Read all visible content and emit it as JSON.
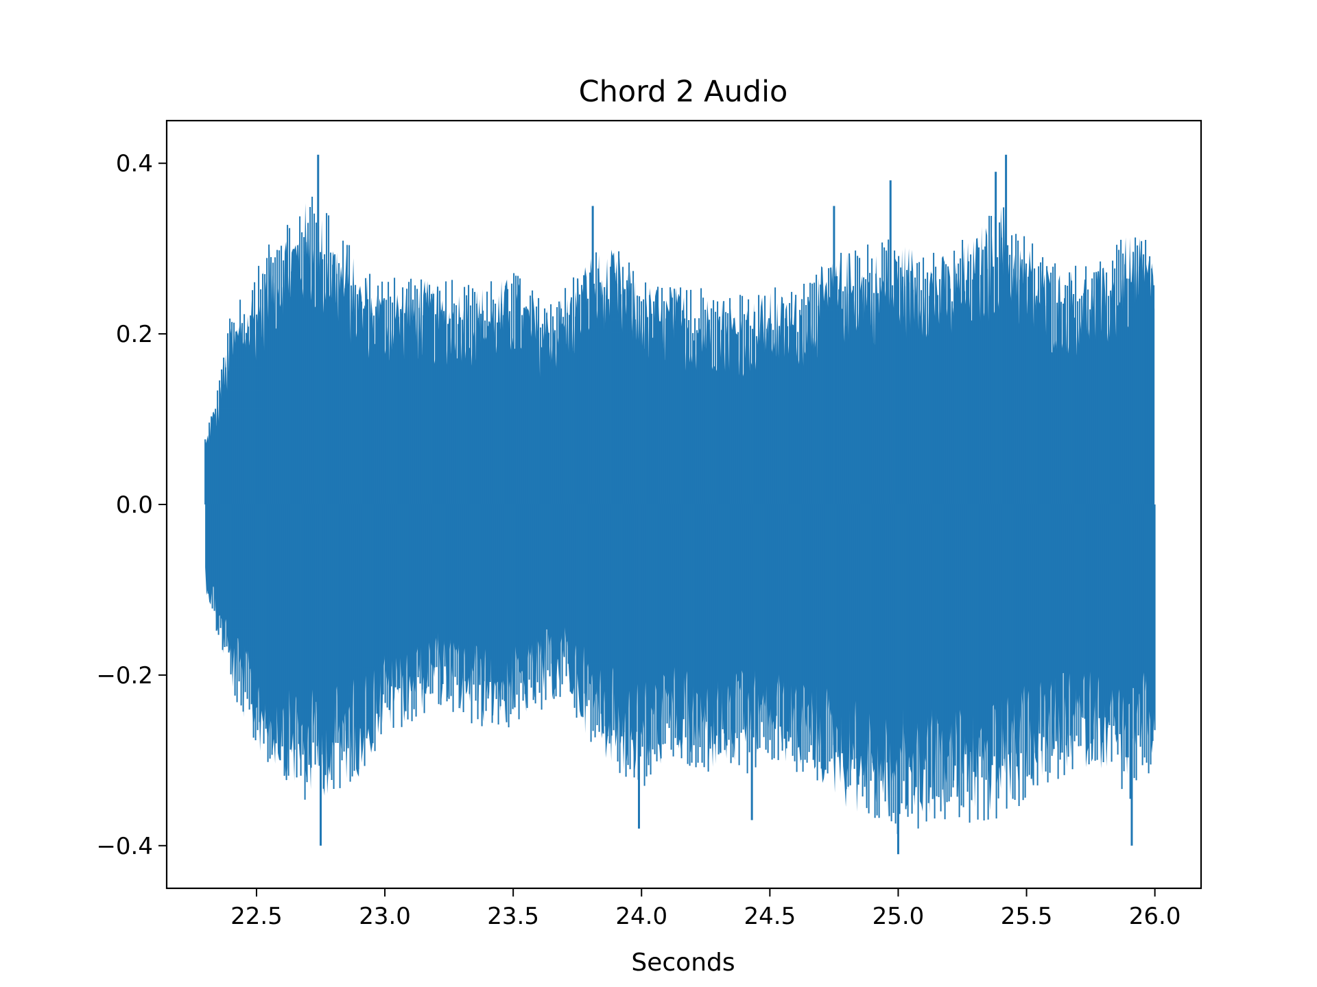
{
  "chart_data": {
    "type": "line",
    "title": "Chord 2 Audio",
    "xlabel": "Seconds",
    "ylabel": "",
    "xlim": [
      22.15,
      26.18
    ],
    "ylim": [
      -0.45,
      0.45
    ],
    "x_ticks": [
      22.5,
      23.0,
      23.5,
      24.0,
      24.5,
      25.0,
      25.5,
      26.0
    ],
    "x_tick_labels": [
      "22.5",
      "23.0",
      "23.5",
      "24.0",
      "24.5",
      "25.0",
      "25.5",
      "26.0"
    ],
    "y_ticks": [
      -0.4,
      -0.2,
      0.0,
      0.2,
      0.4
    ],
    "y_tick_labels": [
      "−0.4",
      "−0.2",
      "0.0",
      "0.2",
      "0.4"
    ],
    "grid": false,
    "legend": "none",
    "series": [
      {
        "color": "#1f77b4",
        "x_start": 22.3,
        "x_end": 26.0,
        "envelope_times": [
          22.3,
          22.35,
          22.4,
          22.5,
          22.6,
          22.7,
          22.8,
          22.9,
          23.0,
          23.1,
          23.2,
          23.3,
          23.4,
          23.5,
          23.6,
          23.7,
          23.8,
          23.9,
          24.0,
          24.1,
          24.2,
          24.3,
          24.4,
          24.5,
          24.6,
          24.7,
          24.8,
          24.9,
          25.0,
          25.1,
          25.2,
          25.3,
          25.4,
          25.5,
          25.6,
          25.7,
          25.8,
          25.9,
          26.0
        ],
        "envelope_upper": [
          0.08,
          0.14,
          0.22,
          0.27,
          0.33,
          0.36,
          0.33,
          0.28,
          0.26,
          0.27,
          0.26,
          0.26,
          0.26,
          0.27,
          0.24,
          0.25,
          0.3,
          0.3,
          0.26,
          0.26,
          0.25,
          0.25,
          0.24,
          0.25,
          0.25,
          0.28,
          0.3,
          0.3,
          0.31,
          0.31,
          0.29,
          0.32,
          0.36,
          0.31,
          0.28,
          0.28,
          0.28,
          0.32,
          0.3
        ],
        "envelope_lower": [
          -0.1,
          -0.16,
          -0.22,
          -0.29,
          -0.32,
          -0.35,
          -0.34,
          -0.32,
          -0.27,
          -0.25,
          -0.23,
          -0.25,
          -0.26,
          -0.26,
          -0.24,
          -0.22,
          -0.28,
          -0.31,
          -0.33,
          -0.3,
          -0.31,
          -0.32,
          -0.31,
          -0.3,
          -0.31,
          -0.33,
          -0.36,
          -0.37,
          -0.38,
          -0.37,
          -0.36,
          -0.37,
          -0.36,
          -0.34,
          -0.32,
          -0.31,
          -0.31,
          -0.34,
          -0.3
        ],
        "peaks": [
          [
            22.74,
            0.41
          ],
          [
            22.75,
            -0.4
          ],
          [
            25.42,
            0.41
          ],
          [
            25.0,
            -0.41
          ],
          [
            24.97,
            0.38
          ],
          [
            25.38,
            0.39
          ],
          [
            23.99,
            -0.38
          ],
          [
            24.43,
            -0.37
          ],
          [
            23.81,
            0.35
          ],
          [
            24.75,
            0.35
          ],
          [
            25.91,
            -0.4
          ]
        ]
      }
    ]
  }
}
